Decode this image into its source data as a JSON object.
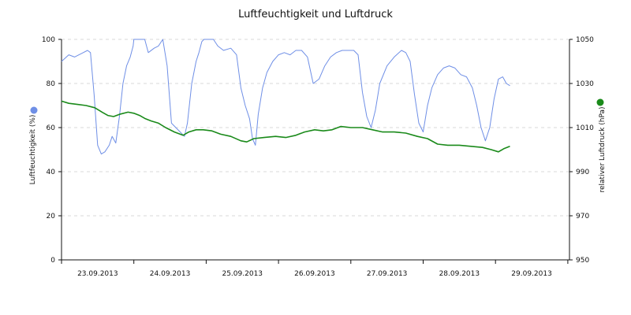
{
  "chart_data": {
    "type": "line",
    "title": "Luftfeuchtigkeit und Luftdruck",
    "x": {
      "ticks": [
        "23.09.2013",
        "24.09.2013",
        "25.09.2013",
        "26.09.2013",
        "27.09.2013",
        "28.09.2013",
        "29.09.2013"
      ],
      "domain_days": 7.0
    },
    "y_left": {
      "label": "Luftfeuchtigkeit (%)",
      "range": [
        0,
        100
      ],
      "ticks": [
        0,
        20,
        40,
        60,
        80,
        100
      ]
    },
    "y_right": {
      "label": "relativer Luftdruck (hPa)",
      "range": [
        950,
        1050
      ],
      "ticks": [
        950,
        970,
        990,
        1010,
        1030,
        1050
      ]
    },
    "grid": true,
    "series": [
      {
        "name": "Luftfeuchtigkeit",
        "axis": "left",
        "color": "#6f8fe6",
        "points": [
          [
            0.0,
            90
          ],
          [
            0.1,
            93
          ],
          [
            0.18,
            92
          ],
          [
            0.3,
            94
          ],
          [
            0.36,
            95
          ],
          [
            0.4,
            94
          ],
          [
            0.45,
            75
          ],
          [
            0.5,
            52
          ],
          [
            0.55,
            48
          ],
          [
            0.6,
            49
          ],
          [
            0.66,
            52
          ],
          [
            0.7,
            56
          ],
          [
            0.75,
            53
          ],
          [
            0.8,
            65
          ],
          [
            0.85,
            80
          ],
          [
            0.9,
            88
          ],
          [
            0.95,
            92
          ],
          [
            0.99,
            97
          ],
          [
            1.0,
            100
          ],
          [
            1.05,
            100
          ],
          [
            1.15,
            100
          ],
          [
            1.2,
            94
          ],
          [
            1.28,
            96
          ],
          [
            1.34,
            97
          ],
          [
            1.4,
            100
          ],
          [
            1.46,
            88
          ],
          [
            1.52,
            62
          ],
          [
            1.58,
            60
          ],
          [
            1.64,
            58
          ],
          [
            1.7,
            56
          ],
          [
            1.74,
            62
          ],
          [
            1.8,
            80
          ],
          [
            1.86,
            90
          ],
          [
            1.9,
            94
          ],
          [
            1.94,
            99
          ],
          [
            1.97,
            100
          ],
          [
            2.1,
            100
          ],
          [
            2.16,
            97
          ],
          [
            2.24,
            95
          ],
          [
            2.34,
            96
          ],
          [
            2.42,
            93
          ],
          [
            2.48,
            78
          ],
          [
            2.54,
            70
          ],
          [
            2.6,
            64
          ],
          [
            2.64,
            55
          ],
          [
            2.68,
            52
          ],
          [
            2.72,
            66
          ],
          [
            2.78,
            78
          ],
          [
            2.84,
            85
          ],
          [
            2.92,
            90
          ],
          [
            3.0,
            93
          ],
          [
            3.08,
            94
          ],
          [
            3.16,
            93
          ],
          [
            3.24,
            95
          ],
          [
            3.32,
            95
          ],
          [
            3.4,
            92
          ],
          [
            3.48,
            80
          ],
          [
            3.56,
            82
          ],
          [
            3.64,
            88
          ],
          [
            3.72,
            92
          ],
          [
            3.8,
            94
          ],
          [
            3.88,
            95
          ],
          [
            3.96,
            95
          ],
          [
            4.04,
            95
          ],
          [
            4.1,
            93
          ],
          [
            4.16,
            76
          ],
          [
            4.22,
            65
          ],
          [
            4.28,
            60
          ],
          [
            4.34,
            68
          ],
          [
            4.4,
            80
          ],
          [
            4.5,
            88
          ],
          [
            4.6,
            92
          ],
          [
            4.7,
            95
          ],
          [
            4.76,
            94
          ],
          [
            4.82,
            90
          ],
          [
            4.88,
            75
          ],
          [
            4.94,
            62
          ],
          [
            5.0,
            58
          ],
          [
            5.06,
            70
          ],
          [
            5.12,
            78
          ],
          [
            5.2,
            84
          ],
          [
            5.28,
            87
          ],
          [
            5.36,
            88
          ],
          [
            5.44,
            87
          ],
          [
            5.52,
            84
          ],
          [
            5.6,
            83
          ],
          [
            5.68,
            78
          ],
          [
            5.74,
            70
          ],
          [
            5.8,
            60
          ],
          [
            5.86,
            54
          ],
          [
            5.92,
            60
          ],
          [
            5.98,
            73
          ],
          [
            6.04,
            82
          ],
          [
            6.1,
            83
          ],
          [
            6.15,
            80
          ],
          [
            6.2,
            79
          ]
        ]
      },
      {
        "name": "relativer Luftdruck",
        "axis": "right",
        "color": "#1a8a1a",
        "points": [
          [
            0.0,
            1022
          ],
          [
            0.1,
            1021
          ],
          [
            0.22,
            1020.5
          ],
          [
            0.34,
            1020
          ],
          [
            0.46,
            1019
          ],
          [
            0.56,
            1017
          ],
          [
            0.64,
            1015.5
          ],
          [
            0.72,
            1015
          ],
          [
            0.8,
            1016
          ],
          [
            0.92,
            1017
          ],
          [
            1.0,
            1016.5
          ],
          [
            1.08,
            1015.5
          ],
          [
            1.16,
            1014
          ],
          [
            1.24,
            1013
          ],
          [
            1.34,
            1012
          ],
          [
            1.44,
            1010
          ],
          [
            1.56,
            1008
          ],
          [
            1.68,
            1006.5
          ],
          [
            1.76,
            1008
          ],
          [
            1.86,
            1009
          ],
          [
            1.96,
            1009
          ],
          [
            2.08,
            1008.5
          ],
          [
            2.2,
            1007
          ],
          [
            2.34,
            1006
          ],
          [
            2.48,
            1004
          ],
          [
            2.56,
            1003.5
          ],
          [
            2.66,
            1005
          ],
          [
            2.8,
            1005.5
          ],
          [
            2.96,
            1006
          ],
          [
            3.1,
            1005.5
          ],
          [
            3.24,
            1006.5
          ],
          [
            3.36,
            1008
          ],
          [
            3.5,
            1009
          ],
          [
            3.62,
            1008.5
          ],
          [
            3.74,
            1009
          ],
          [
            3.86,
            1010.5
          ],
          [
            4.0,
            1010
          ],
          [
            4.16,
            1010
          ],
          [
            4.3,
            1009
          ],
          [
            4.44,
            1008
          ],
          [
            4.6,
            1008
          ],
          [
            4.76,
            1007.5
          ],
          [
            4.92,
            1006
          ],
          [
            5.06,
            1005
          ],
          [
            5.2,
            1002.5
          ],
          [
            5.34,
            1002
          ],
          [
            5.5,
            1002
          ],
          [
            5.66,
            1001.5
          ],
          [
            5.82,
            1001
          ],
          [
            5.94,
            1000
          ],
          [
            6.04,
            999
          ],
          [
            6.12,
            1000.5
          ],
          [
            6.2,
            1001.5
          ]
        ]
      }
    ]
  }
}
